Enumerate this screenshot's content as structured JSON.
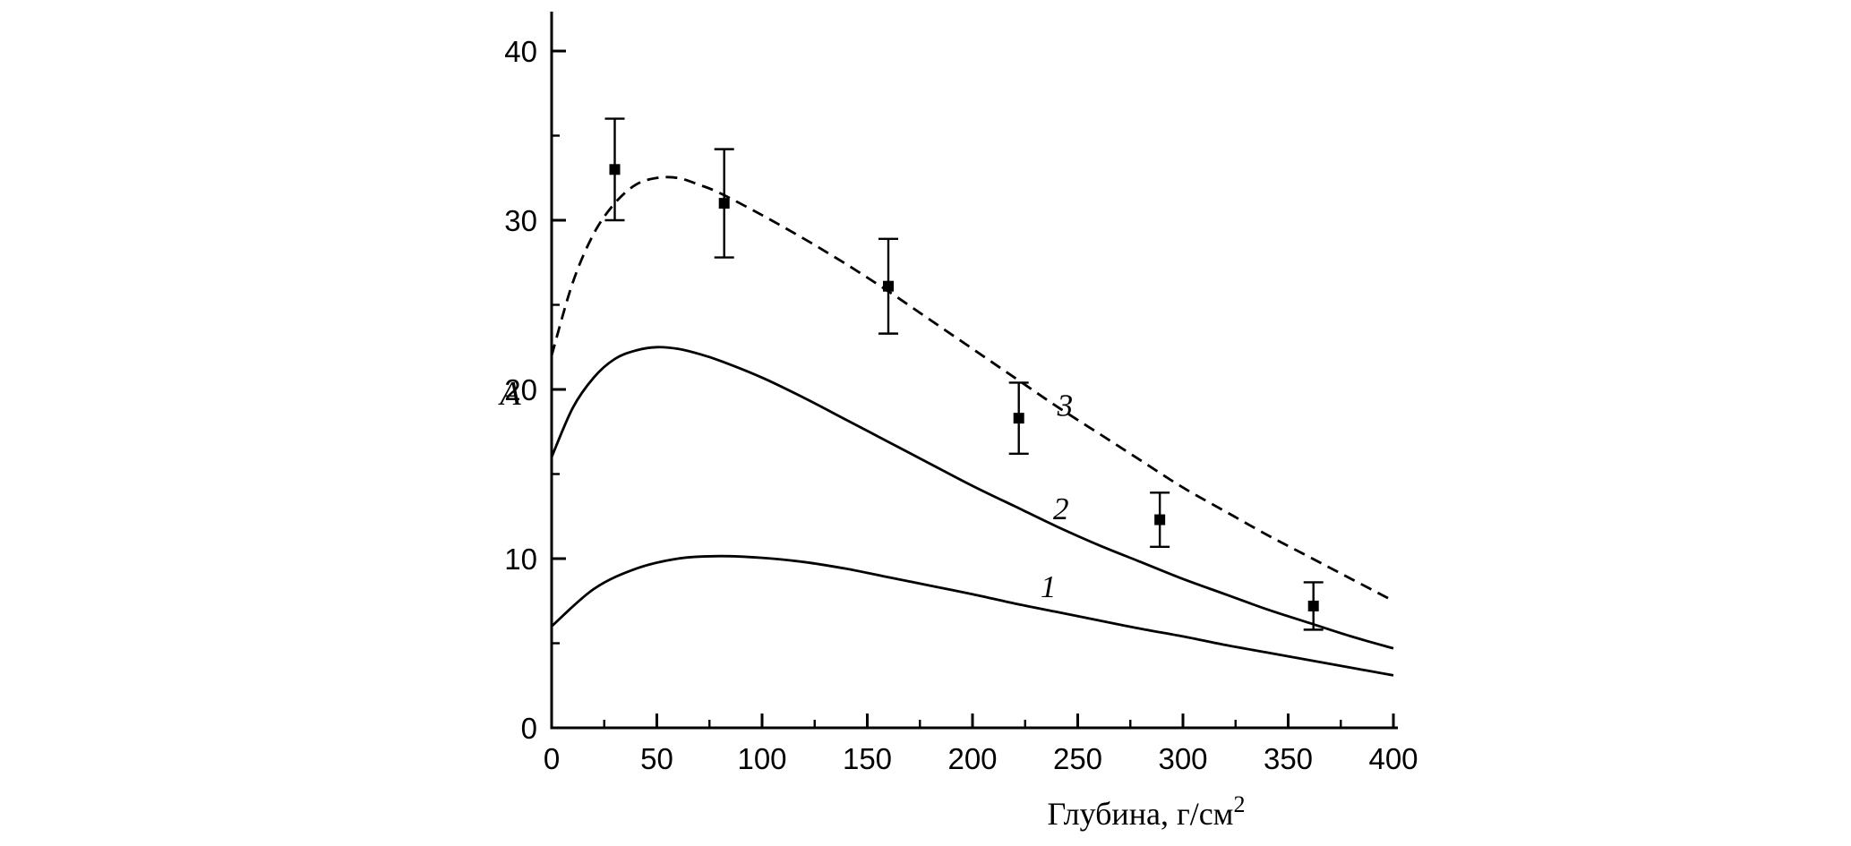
{
  "page": {
    "background": "#ffffff",
    "foreground": "#000000"
  },
  "chart_data": {
    "type": "line",
    "title": "",
    "xlabel": {
      "text": "Глубина, г/см",
      "superscript": "2"
    },
    "ylabel": "A",
    "xlim": [
      0,
      400
    ],
    "ylim": [
      0,
      40
    ],
    "x_major_ticks": [
      0,
      50,
      100,
      150,
      200,
      250,
      300,
      350,
      400
    ],
    "x_minor_step": 25,
    "y_major_ticks": [
      0,
      10,
      20,
      30,
      40
    ],
    "y_minor_step": 5,
    "grid": false,
    "legend": "none",
    "axis_color": "#000000",
    "series": [
      {
        "name": "curve-1",
        "label": "1",
        "label_pos": {
          "x": 236,
          "y": 8.4
        },
        "style": "solid",
        "color": "#000000",
        "x": [
          0,
          20,
          40,
          60,
          80,
          100,
          120,
          140,
          160,
          180,
          200,
          220,
          240,
          260,
          280,
          300,
          320,
          340,
          360,
          380,
          400
        ],
        "y": [
          6.0,
          8.2,
          9.4,
          10.0,
          10.15,
          10.05,
          9.8,
          9.4,
          8.9,
          8.4,
          7.9,
          7.35,
          6.85,
          6.35,
          5.85,
          5.4,
          4.9,
          4.45,
          4.0,
          3.55,
          3.1
        ]
      },
      {
        "name": "curve-2",
        "label": "2",
        "label_pos": {
          "x": 242,
          "y": 13.0
        },
        "style": "solid",
        "color": "#000000",
        "x": [
          0,
          10,
          20,
          30,
          40,
          50,
          60,
          70,
          80,
          100,
          120,
          140,
          160,
          180,
          200,
          220,
          240,
          260,
          280,
          300,
          320,
          340,
          360,
          380,
          400
        ],
        "y": [
          16.0,
          18.9,
          20.7,
          21.8,
          22.3,
          22.5,
          22.4,
          22.1,
          21.7,
          20.7,
          19.5,
          18.2,
          16.9,
          15.6,
          14.3,
          13.1,
          11.9,
          10.8,
          9.8,
          8.8,
          7.9,
          7.0,
          6.2,
          5.4,
          4.7
        ]
      },
      {
        "name": "curve-3",
        "label": "3",
        "label_pos": {
          "x": 244,
          "y": 19.1
        },
        "style": "dashed",
        "color": "#000000",
        "x": [
          0,
          10,
          20,
          30,
          40,
          50,
          60,
          70,
          80,
          100,
          120,
          140,
          160,
          180,
          200,
          220,
          240,
          260,
          280,
          300,
          320,
          340,
          360,
          380,
          400
        ],
        "y": [
          22.0,
          26.3,
          29.2,
          31.0,
          32.1,
          32.5,
          32.5,
          32.1,
          31.6,
          30.3,
          28.9,
          27.4,
          25.8,
          24.1,
          22.4,
          20.7,
          19.0,
          17.4,
          15.8,
          14.2,
          12.8,
          11.4,
          10.1,
          8.8,
          7.5
        ]
      }
    ],
    "points": {
      "name": "measured-points",
      "marker": "square",
      "color": "#000000",
      "data": [
        {
          "x": 30,
          "y": 33.0,
          "err": 3.0
        },
        {
          "x": 82,
          "y": 31.0,
          "err": 3.2
        },
        {
          "x": 160,
          "y": 26.1,
          "err": 2.8
        },
        {
          "x": 222,
          "y": 18.3,
          "err": 2.1
        },
        {
          "x": 289,
          "y": 12.3,
          "err": 1.6
        },
        {
          "x": 362,
          "y": 7.2,
          "err": 1.4
        }
      ]
    }
  }
}
